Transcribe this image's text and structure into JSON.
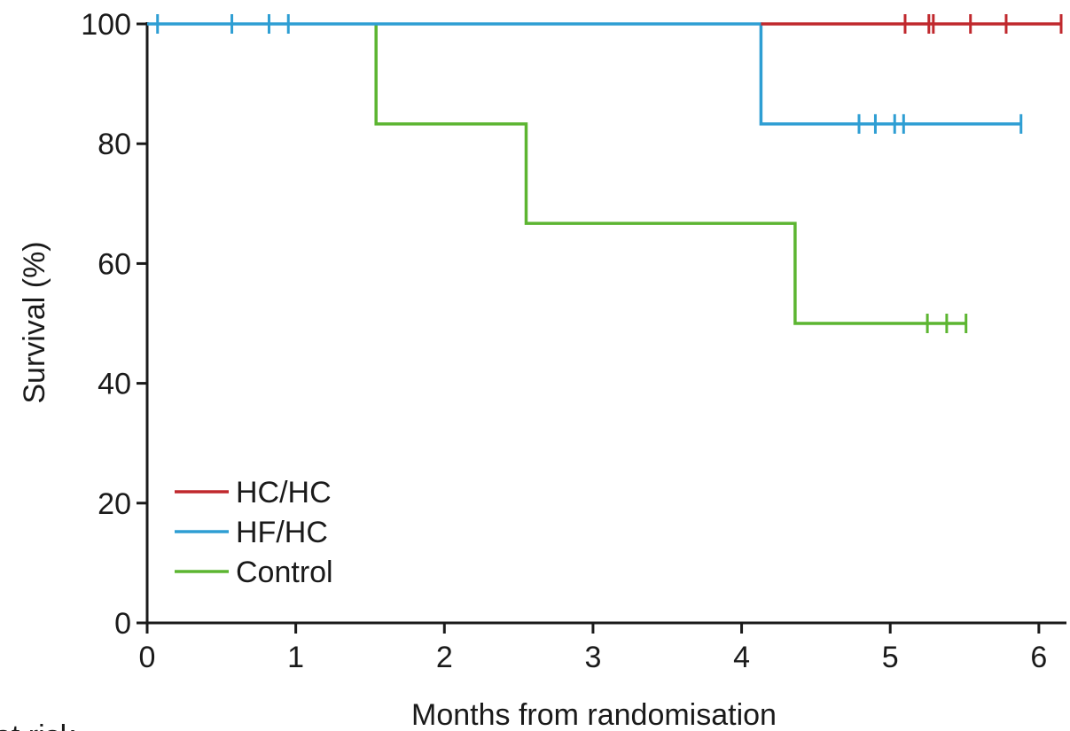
{
  "chart_data": {
    "type": "line",
    "step": true,
    "xlabel": "Months from randomisation",
    "ylabel": "Survival (%)",
    "xlim": [
      0,
      6.15
    ],
    "ylim": [
      0,
      100
    ],
    "xticks": [
      0,
      1,
      2,
      3,
      4,
      5,
      6
    ],
    "yticks": [
      0,
      20,
      40,
      60,
      80,
      100
    ],
    "legend_position": "lower-left",
    "grid": false,
    "series": [
      {
        "name": "HC/HC",
        "color": "#c0282d",
        "x": [
          4.13,
          6.15
        ],
        "y": [
          100,
          100
        ],
        "censored_x": [
          5.1,
          5.26,
          5.29,
          5.54,
          5.78,
          6.15
        ],
        "censored_y": 100
      },
      {
        "name": "HF/HC",
        "color": "#2e9ed3",
        "x": [
          0,
          4.13,
          4.13,
          5.88
        ],
        "y": [
          100,
          100,
          83.3,
          83.3
        ],
        "censored_x": [
          0.07,
          0.57,
          0.82,
          0.95,
          4.79,
          4.9,
          5.03,
          5.09,
          5.88
        ],
        "censored_y_values": [
          100,
          100,
          100,
          100,
          83.3,
          83.3,
          83.3,
          83.3,
          83.3
        ]
      },
      {
        "name": "Control",
        "color": "#5cb531",
        "x": [
          1.54,
          1.54,
          2.55,
          2.55,
          4.36,
          4.36,
          5.51
        ],
        "y": [
          100,
          83.3,
          83.3,
          66.7,
          66.7,
          50,
          50
        ],
        "censored_x": [
          5.25,
          5.38,
          5.51
        ],
        "censored_y": 50
      }
    ],
    "bottom_clipped_text": "at risk"
  }
}
